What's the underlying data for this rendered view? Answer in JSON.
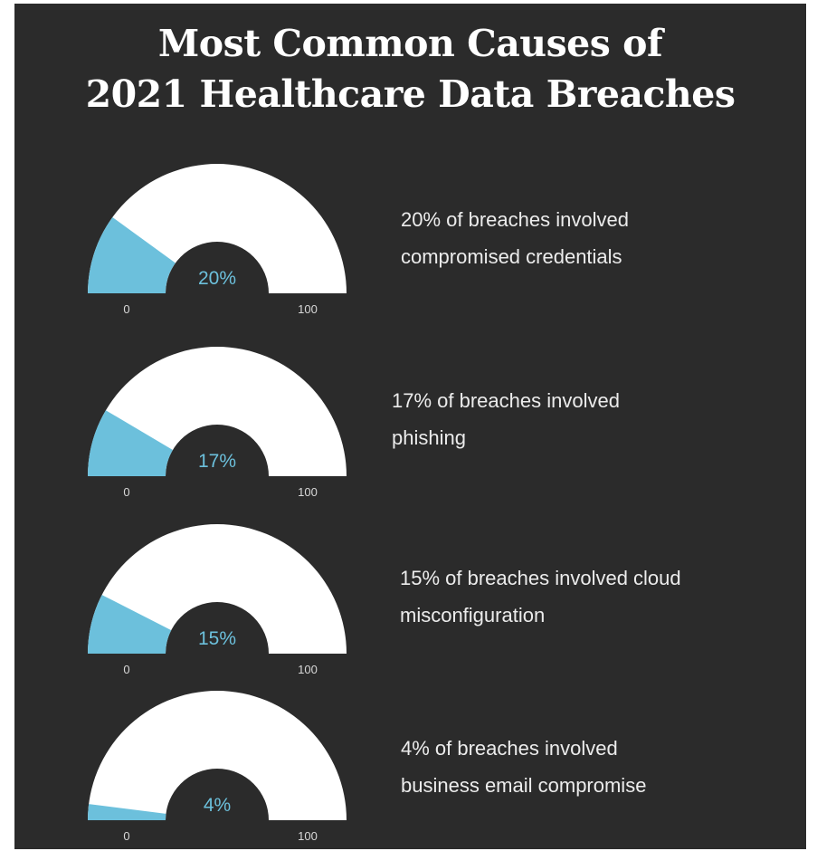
{
  "title": {
    "line1": "Most Common Causes of",
    "line2": "2021 Healthcare Data Breaches"
  },
  "colors": {
    "background": "#2b2b2b",
    "gauge_track": "#ffffff",
    "gauge_fill": "#6cc0dc",
    "value_label": "#6cc0dc"
  },
  "chart_data": [
    {
      "type": "gauge",
      "value": 20,
      "min": 0,
      "max": 100,
      "value_label": "20%",
      "min_label": "0",
      "max_label": "100",
      "caption": [
        "20% of breaches involved",
        "compromised credentials"
      ]
    },
    {
      "type": "gauge",
      "value": 17,
      "min": 0,
      "max": 100,
      "value_label": "17%",
      "min_label": "0",
      "max_label": "100",
      "caption": [
        "17% of breaches involved",
        "phishing"
      ]
    },
    {
      "type": "gauge",
      "value": 15,
      "min": 0,
      "max": 100,
      "value_label": "15%",
      "min_label": "0",
      "max_label": "100",
      "caption": [
        "15% of breaches involved cloud",
        "misconfiguration"
      ]
    },
    {
      "type": "gauge",
      "value": 4,
      "min": 0,
      "max": 100,
      "value_label": "4%",
      "min_label": "0",
      "max_label": "100",
      "caption": [
        "4% of breaches involved",
        "business email compromise"
      ]
    }
  ]
}
